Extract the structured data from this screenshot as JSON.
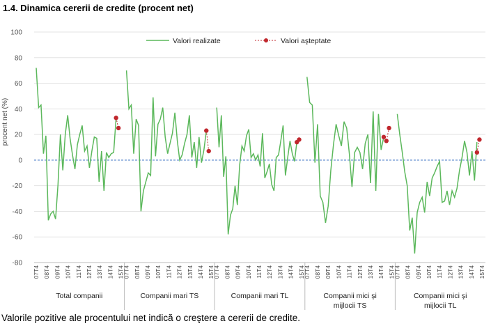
{
  "title": "1.4. Dinamica cererii de credite (procent net)",
  "footer": "Valorile pozitive ale procentului net indică o creştere a cererii de credite.",
  "chart_data": {
    "type": "line",
    "ylabel": "procent net (%)",
    "ylim": [
      -80,
      100
    ],
    "yticks": [
      -80,
      -60,
      -40,
      -20,
      0,
      20,
      40,
      60,
      80,
      100
    ],
    "x_tick_labels": [
      "07T4",
      "08T4",
      "09T4",
      "10T4",
      "11T4",
      "12T4",
      "13T4",
      "14T4",
      "15T4"
    ],
    "legend_position": "top-center",
    "colors": {
      "realized": "#5cb85c",
      "expected": "#c0272d",
      "zero_line": "#9bb7e0"
    },
    "groups": [
      {
        "name": "Total companii",
        "realized": [
          72,
          41,
          43,
          5,
          19,
          -47,
          -42,
          -40,
          -46,
          -19,
          20,
          -8,
          20,
          35,
          17,
          4,
          -7,
          12,
          20,
          27,
          7,
          11,
          -6,
          7,
          18,
          17,
          -17,
          7,
          -24,
          6,
          2,
          5,
          6,
          33
        ],
        "expected": [
          33,
          25
        ]
      },
      {
        "name": "Companii mari TS",
        "realized": [
          70,
          40,
          43,
          5,
          32,
          27,
          -40,
          -24,
          -17,
          -10,
          -12,
          49,
          3,
          28,
          32,
          41,
          18,
          5,
          13,
          21,
          37,
          15,
          0,
          4,
          13,
          20,
          35,
          2,
          14,
          -6,
          18,
          -2,
          8,
          23
        ],
        "expected": [
          23,
          7
        ]
      },
      {
        "name": "Companii mari TL",
        "realized": [
          41,
          10,
          35,
          -13,
          3,
          -58,
          -43,
          -38,
          -20,
          -35,
          -4,
          11,
          7,
          19,
          24,
          2,
          5,
          0,
          4,
          -5,
          21,
          -14,
          -9,
          -3,
          -19,
          -24,
          2,
          4,
          15,
          27,
          -12,
          2,
          15,
          5,
          -1,
          14
        ],
        "expected": [
          14,
          16
        ]
      },
      {
        "name": "Companii mici şi mijlocii TS",
        "realized": [
          65,
          45,
          43,
          -2,
          28,
          -28,
          -33,
          -49,
          -36,
          -8,
          12,
          28,
          19,
          11,
          30,
          25,
          5,
          -21,
          6,
          10,
          6,
          -7,
          13,
          20,
          -18,
          38,
          -24,
          36,
          8,
          18
        ],
        "expected": [
          18,
          15,
          25
        ]
      },
      {
        "name": "Companii mici şi mijlocii TL",
        "realized": [
          36,
          20,
          6,
          -9,
          -20,
          -55,
          -45,
          -73,
          -41,
          -33,
          -29,
          -41,
          -17,
          -28,
          -14,
          -10,
          -5,
          -1,
          -33,
          -32,
          -24,
          -35,
          -24,
          -29,
          -22,
          -8,
          2,
          15,
          6,
          -12,
          7,
          -16,
          14
        ],
        "expected": [
          6,
          16
        ]
      }
    ],
    "legend": [
      "Valori realizate",
      "Valori aşteptate"
    ]
  }
}
